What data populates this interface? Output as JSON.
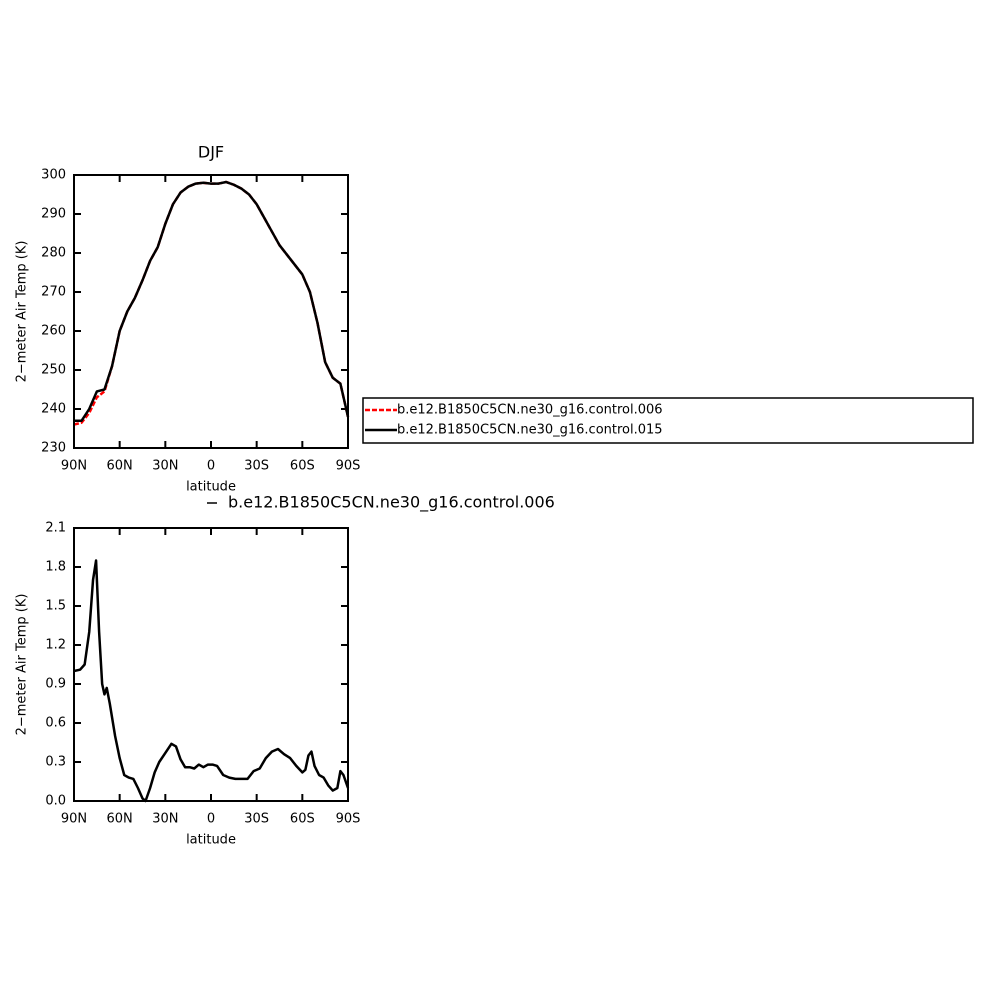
{
  "chart_data": [
    {
      "type": "line",
      "title": "DJF",
      "xlabel": "latitude",
      "ylabel": "2−meter Air Temp (K)",
      "x": [
        90,
        85,
        80,
        75,
        70,
        65,
        60,
        55,
        50,
        45,
        40,
        35,
        30,
        25,
        20,
        15,
        10,
        5,
        0,
        -5,
        -10,
        -15,
        -20,
        -25,
        -30,
        -35,
        -40,
        -45,
        -50,
        -55,
        -60,
        -65,
        -70,
        -75,
        -80,
        -85,
        -90
      ],
      "series": [
        {
          "name": "b.e12.B1850C5CN.ne30_g16.control.006",
          "color": "#ff0000",
          "dash": true,
          "values": [
            236,
            236.5,
            239,
            243,
            244.5,
            251,
            260,
            265,
            268.5,
            273,
            278,
            281.5,
            287.5,
            292.5,
            295.5,
            297,
            297.8,
            298,
            297.8,
            297.8,
            298.2,
            297.5,
            296.5,
            295,
            292.5,
            289,
            285.5,
            282,
            279.5,
            277,
            274.5,
            270,
            262,
            252,
            248,
            246.5,
            238
          ]
        },
        {
          "name": "b.e12.B1850C5CN.ne30_g16.control.015",
          "color": "#000000",
          "dash": false,
          "values": [
            237,
            237,
            240,
            244.5,
            245,
            251,
            260,
            265,
            268.5,
            273,
            278,
            281.5,
            287.5,
            292.5,
            295.5,
            297,
            297.8,
            298,
            297.8,
            297.8,
            298.2,
            297.5,
            296.5,
            295,
            292.5,
            289,
            285.5,
            282,
            279.5,
            277,
            274.5,
            270,
            262,
            252,
            248,
            246.5,
            238
          ]
        }
      ],
      "xlim": [
        90,
        -90
      ],
      "ylim": [
        230,
        300
      ],
      "xticks": [
        {
          "value": 90,
          "label": "90N"
        },
        {
          "value": 60,
          "label": "60N"
        },
        {
          "value": 30,
          "label": "30N"
        },
        0,
        {
          "value": -30,
          "label": "30S"
        },
        {
          "value": -60,
          "label": "60S"
        },
        {
          "value": -90,
          "label": "90S"
        }
      ],
      "yticks": [
        230,
        240,
        250,
        260,
        270,
        280,
        290,
        300
      ],
      "legend": "outside-right"
    },
    {
      "type": "line",
      "xlabel": "latitude",
      "ylabel": "2−meter Air Temp (K)",
      "x": [
        90,
        86,
        83,
        80,
        77.5,
        75.5,
        73.5,
        71.5,
        70,
        68.5,
        66.5,
        63,
        60,
        57,
        54,
        51,
        48,
        45,
        43,
        40,
        37,
        34,
        30,
        26,
        23,
        20,
        17,
        14,
        11,
        8,
        5,
        2,
        -1,
        -4,
        -8,
        -12,
        -16,
        -20,
        -24,
        -28,
        -32,
        -36,
        -40,
        -44,
        -48,
        -52,
        -56,
        -60,
        -62,
        -64,
        -66,
        -68,
        -71,
        -74,
        -77,
        -80,
        -83,
        -85,
        -87,
        -90
      ],
      "series": [
        {
          "name": "b.e12.B1850C5CN.ne30_g16.control.006",
          "color": "#000000",
          "dash": false,
          "values": [
            1.0,
            1.01,
            1.05,
            1.3,
            1.7,
            1.85,
            1.3,
            0.9,
            0.82,
            0.87,
            0.75,
            0.5,
            0.33,
            0.2,
            0.18,
            0.17,
            0.1,
            0.02,
            0.0,
            0.1,
            0.22,
            0.3,
            0.37,
            0.44,
            0.42,
            0.32,
            0.26,
            0.26,
            0.25,
            0.28,
            0.26,
            0.28,
            0.28,
            0.27,
            0.2,
            0.18,
            0.17,
            0.17,
            0.17,
            0.23,
            0.25,
            0.33,
            0.38,
            0.4,
            0.36,
            0.33,
            0.27,
            0.22,
            0.24,
            0.35,
            0.38,
            0.27,
            0.2,
            0.18,
            0.12,
            0.08,
            0.1,
            0.23,
            0.2,
            0.1
          ]
        }
      ],
      "xlim": [
        90,
        -90
      ],
      "ylim": [
        0,
        2.1
      ],
      "xticks": [
        {
          "value": 90,
          "label": "90N"
        },
        {
          "value": 60,
          "label": "60N"
        },
        {
          "value": 30,
          "label": "30N"
        },
        0,
        {
          "value": -30,
          "label": "30S"
        },
        {
          "value": -60,
          "label": "60S"
        },
        {
          "value": -90,
          "label": "90S"
        }
      ],
      "yticks": [
        {
          "value": 0,
          "label": "0.0"
        },
        0.3,
        0.6,
        0.9,
        1.2,
        1.5,
        1.8,
        2.1
      ],
      "legend": "top"
    }
  ]
}
